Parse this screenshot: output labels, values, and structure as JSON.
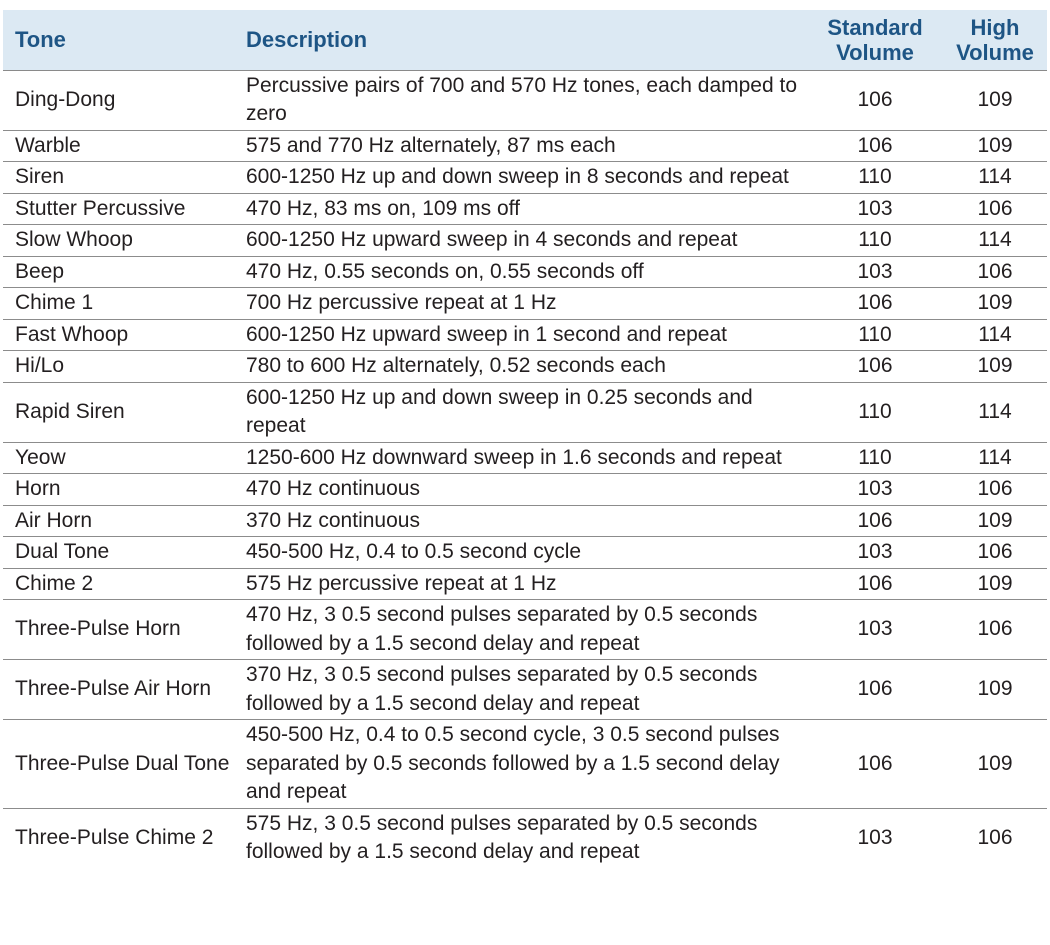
{
  "table": {
    "headers": {
      "tone": "Tone",
      "description": "Description",
      "standard_line1": "Standard",
      "standard_line2": "Volume",
      "high_line1": "High",
      "high_line2": "Volume"
    },
    "rows": [
      {
        "tone": "Ding-Dong",
        "description": "Percussive pairs of 700 and 570 Hz tones, each damped to zero",
        "standard": "106",
        "high": "109"
      },
      {
        "tone": "Warble",
        "description": "575 and 770 Hz alternately, 87 ms each",
        "standard": "106",
        "high": "109"
      },
      {
        "tone": "Siren",
        "description": "600-1250 Hz up and down sweep in 8 seconds and repeat",
        "standard": "110",
        "high": "114"
      },
      {
        "tone": "Stutter Percussive",
        "description": "470 Hz, 83 ms on, 109 ms off",
        "standard": "103",
        "high": "106"
      },
      {
        "tone": "Slow Whoop",
        "description": "600-1250 Hz upward sweep in 4 seconds and repeat",
        "standard": "110",
        "high": "114"
      },
      {
        "tone": "Beep",
        "description": "470 Hz, 0.55 seconds on, 0.55 seconds off",
        "standard": "103",
        "high": "106"
      },
      {
        "tone": "Chime 1",
        "description": "700 Hz percussive repeat at 1 Hz",
        "standard": "106",
        "high": "109"
      },
      {
        "tone": "Fast Whoop",
        "description": "600-1250 Hz upward sweep in 1 second and repeat",
        "standard": "110",
        "high": "114"
      },
      {
        "tone": "Hi/Lo",
        "description": "780 to 600 Hz alternately, 0.52 seconds each",
        "standard": "106",
        "high": "109"
      },
      {
        "tone": "Rapid Siren",
        "description": "600-1250 Hz up and down sweep in 0.25 seconds and repeat",
        "standard": "110",
        "high": "114"
      },
      {
        "tone": "Yeow",
        "description": "1250-600 Hz downward sweep in 1.6 seconds and repeat",
        "standard": "110",
        "high": "114"
      },
      {
        "tone": "Horn",
        "description": "470 Hz continuous",
        "standard": "103",
        "high": "106"
      },
      {
        "tone": "Air Horn",
        "description": "370 Hz continuous",
        "standard": "106",
        "high": "109"
      },
      {
        "tone": "Dual Tone",
        "description": "450-500 Hz, 0.4 to 0.5 second cycle",
        "standard": "103",
        "high": "106"
      },
      {
        "tone": "Chime 2",
        "description": "575 Hz percussive repeat at 1 Hz",
        "standard": "106",
        "high": "109"
      },
      {
        "tone": "Three-Pulse Horn",
        "description": "470 Hz, 3 0.5 second pulses separated by 0.5 seconds followed by a 1.5 second delay and repeat",
        "standard": "103",
        "high": "106"
      },
      {
        "tone": "Three-Pulse Air Horn",
        "description": "370 Hz, 3 0.5 second pulses separated by 0.5 seconds followed by a 1.5 second delay and repeat",
        "standard": "106",
        "high": "109"
      },
      {
        "tone": "Three-Pulse Dual Tone",
        "description": "450-500 Hz, 0.4 to 0.5 second cycle, 3 0.5 second pulses separated by 0.5 seconds followed by a 1.5 second delay and repeat",
        "standard": "106",
        "high": "109"
      },
      {
        "tone": "Three-Pulse Chime 2",
        "description": "575 Hz, 3 0.5 second pulses separated by 0.5 seconds followed by a 1.5 second delay and repeat",
        "standard": "103",
        "high": "106"
      }
    ]
  },
  "colors": {
    "header_background": "#dce9f3",
    "header_text": "#1e5585",
    "body_text": "#231f20",
    "row_rule": "#8c8c8c"
  }
}
